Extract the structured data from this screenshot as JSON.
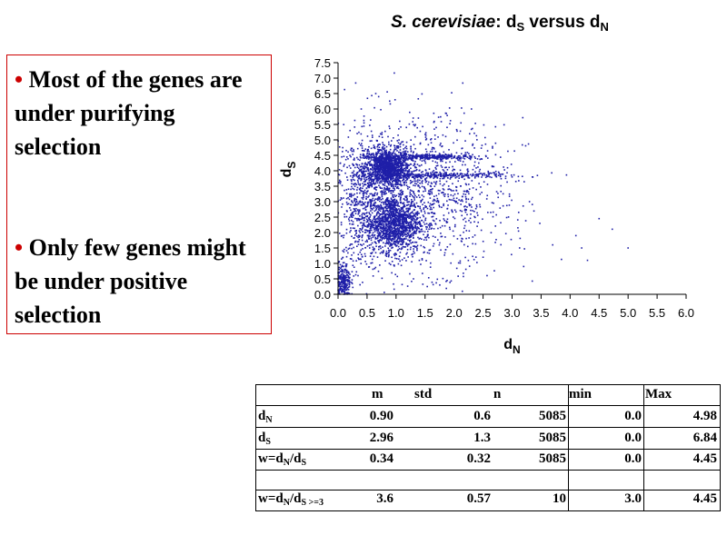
{
  "title": {
    "species": "S. cerevisiae",
    "rest_a": ": d",
    "sub_a": "S",
    "rest_b": " versus d",
    "sub_b": "N"
  },
  "bullets": [
    {
      "marker": "•",
      "text": "Most of the genes are under purifying selection"
    },
    {
      "marker": "•",
      "text": "Only few genes might be under positive selection"
    }
  ],
  "chart_data": {
    "type": "scatter",
    "title": "S. cerevisiae: dS versus dN",
    "xlabel": "dN",
    "ylabel": "dS",
    "xlim": [
      0,
      6
    ],
    "ylim": [
      0,
      7.5
    ],
    "xticks": [
      "0.0",
      "0.5",
      "1.0",
      "1.5",
      "2.0",
      "2.5",
      "3.0",
      "3.5",
      "4.0",
      "4.5",
      "5.0",
      "5.5",
      "6.0"
    ],
    "yticks": [
      "0.0",
      "0.5",
      "1.0",
      "1.5",
      "2.0",
      "2.5",
      "3.0",
      "3.5",
      "4.0",
      "4.5",
      "5.0",
      "5.5",
      "6.0",
      "6.5",
      "7.0",
      "7.5"
    ],
    "marker_color": "#1f1fa8",
    "grid": false,
    "clusters": [
      {
        "x_mean": 0.85,
        "y_mean": 4.1,
        "x_sd": 0.2,
        "y_sd": 0.3,
        "n": 1300
      },
      {
        "x_mean": 0.95,
        "y_mean": 2.3,
        "x_sd": 0.22,
        "y_sd": 0.45,
        "n": 1300
      },
      {
        "x_mean": 0.1,
        "y_mean": 0.4,
        "x_sd": 0.06,
        "y_sd": 0.3,
        "n": 250
      },
      {
        "x_mean": 1.3,
        "y_mean": 3.2,
        "x_sd": 0.8,
        "y_sd": 1.2,
        "n": 1400
      },
      {
        "x_mean": 1.6,
        "y_mean": 4.45,
        "x_sd": 0.45,
        "y_sd": 0.04,
        "n": 300
      },
      {
        "x_mean": 1.8,
        "y_mean": 3.85,
        "x_sd": 0.6,
        "y_sd": 0.04,
        "n": 250
      },
      {
        "x_mean": 0.4,
        "y_mean": 2.8,
        "x_sd": 0.15,
        "y_sd": 1.1,
        "n": 285
      }
    ],
    "sample_points": [
      {
        "x": 2.15,
        "y": 6.84
      },
      {
        "x": 0.7,
        "y": 6.4
      },
      {
        "x": 0.65,
        "y": 6.5
      },
      {
        "x": 5.0,
        "y": 1.5
      },
      {
        "x": 4.5,
        "y": 2.45
      },
      {
        "x": 4.2,
        "y": 1.5
      },
      {
        "x": 4.3,
        "y": 1.1
      },
      {
        "x": 3.7,
        "y": 1.6
      },
      {
        "x": 4.1,
        "y": 1.9
      },
      {
        "x": 3.0,
        "y": 3.8
      },
      {
        "x": 3.35,
        "y": 3.8
      },
      {
        "x": 3.3,
        "y": 3.0
      },
      {
        "x": 2.3,
        "y": 6.0
      },
      {
        "x": 0.4,
        "y": 6.0
      },
      {
        "x": 1.3,
        "y": 0.5
      },
      {
        "x": 3.2,
        "y": 0.9
      },
      {
        "x": 2.5,
        "y": 1.2
      }
    ]
  },
  "stats_table": {
    "headers": [
      "m",
      "std",
      "n",
      "min",
      "Max"
    ],
    "rows": [
      {
        "label": "d",
        "sub": "N",
        "suffix": "",
        "sub2": "",
        "values": [
          "0.90",
          "0.6",
          "5085",
          "0.0",
          "4.98"
        ]
      },
      {
        "label": "d",
        "sub": "S",
        "suffix": "",
        "sub2": "",
        "values": [
          "2.96",
          "1.3",
          "5085",
          "0.0",
          "6.84"
        ]
      },
      {
        "label": "w=d",
        "sub": "N",
        "suffix": "/d",
        "sub2": "S",
        "values": [
          "0.34",
          "0.32",
          "5085",
          "0.0",
          "4.45"
        ]
      },
      {
        "label": "w=d",
        "sub": "N",
        "suffix": "/d",
        "sub2": "S >=3",
        "values": [
          "3.6",
          "0.57",
          "10",
          "3.0",
          "4.45"
        ]
      }
    ]
  }
}
